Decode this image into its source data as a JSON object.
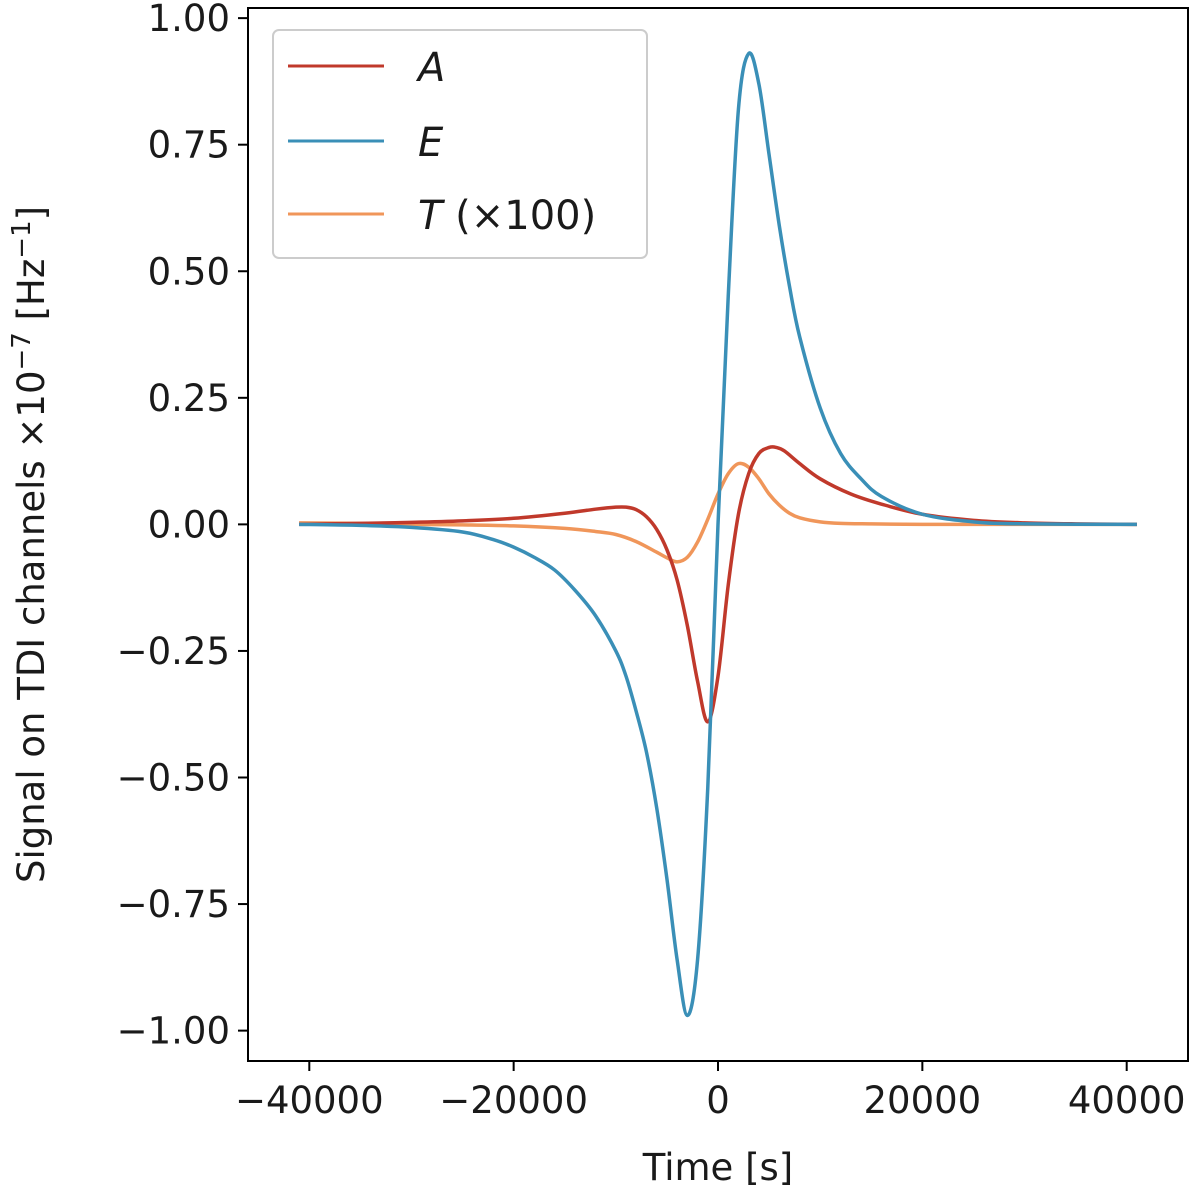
{
  "chart_data": {
    "type": "line",
    "xlabel": "Time [s]",
    "ylabel": "Signal on TDI channels ×10",
    "ylabel_exponent": "−7",
    "ylabel_unit_open": " [Hz",
    "ylabel_unit_exponent": "−1",
    "ylabel_unit_close": "]",
    "xlim": [
      -46000,
      46000
    ],
    "ylim": [
      -1.06,
      1.02
    ],
    "xticks": [
      -40000,
      -20000,
      0,
      20000,
      40000
    ],
    "xtick_labels": [
      "−40000",
      "−20000",
      "0",
      "20000",
      "40000"
    ],
    "yticks": [
      -1.0,
      -0.75,
      -0.5,
      -0.25,
      0.0,
      0.25,
      0.5,
      0.75,
      1.0
    ],
    "ytick_labels": [
      "−1.00",
      "−0.75",
      "−0.50",
      "−0.25",
      "0.00",
      "0.25",
      "0.50",
      "0.75",
      "1.00"
    ],
    "grid": false,
    "legend_position": "top-left",
    "series": [
      {
        "name": "A",
        "legend_symbol": "A",
        "legend_suffix": "",
        "color": "#c0392b",
        "x": [
          -41000,
          -35000,
          -30000,
          -25000,
          -20000,
          -15000,
          -12000,
          -10000,
          -9000,
          -8000,
          -7000,
          -6000,
          -5000,
          -4000,
          -3000,
          -2000,
          -1000,
          0,
          1000,
          2000,
          3000,
          4000,
          5000,
          5700,
          6500,
          8000,
          10000,
          13000,
          16000,
          20000,
          25000,
          30000,
          35000,
          41000
        ],
        "y": [
          0.0,
          0.002,
          0.004,
          0.007,
          0.012,
          0.022,
          0.03,
          0.034,
          0.034,
          0.029,
          0.015,
          -0.01,
          -0.05,
          -0.11,
          -0.2,
          -0.31,
          -0.39,
          -0.3,
          -0.12,
          0.02,
          0.1,
          0.14,
          0.152,
          0.152,
          0.145,
          0.12,
          0.09,
          0.06,
          0.04,
          0.02,
          0.008,
          0.003,
          0.001,
          0.0
        ]
      },
      {
        "name": "E",
        "legend_symbol": "E",
        "legend_suffix": "",
        "color": "#3a8fb7",
        "x": [
          -41000,
          -35000,
          -30000,
          -25000,
          -22000,
          -20000,
          -18000,
          -16000,
          -14000,
          -12000,
          -10000,
          -9000,
          -8000,
          -7000,
          -6000,
          -5000,
          -4000,
          -3000,
          -2000,
          -1000,
          0,
          1000,
          2000,
          3000,
          4000,
          5000,
          6000,
          7000,
          8000,
          10000,
          12000,
          14000,
          16000,
          20000,
          25000,
          30000,
          41000
        ],
        "y": [
          0.0,
          -0.002,
          -0.006,
          -0.015,
          -0.03,
          -0.045,
          -0.065,
          -0.09,
          -0.13,
          -0.18,
          -0.25,
          -0.3,
          -0.37,
          -0.45,
          -0.56,
          -0.7,
          -0.86,
          -0.97,
          -0.86,
          -0.52,
          0.0,
          0.45,
          0.82,
          0.93,
          0.87,
          0.73,
          0.59,
          0.47,
          0.37,
          0.23,
          0.14,
          0.09,
          0.055,
          0.02,
          0.005,
          0.001,
          0.0
        ]
      },
      {
        "name": "T",
        "legend_symbol": "T",
        "legend_suffix": " (×100)",
        "color": "#f0965a",
        "x": [
          -41000,
          -35000,
          -30000,
          -25000,
          -20000,
          -15000,
          -12000,
          -10000,
          -8000,
          -6000,
          -5000,
          -4000,
          -3000,
          -2000,
          -1000,
          0,
          1000,
          2000,
          3000,
          4000,
          5000,
          6000,
          7000,
          8000,
          10000,
          12000,
          15000,
          20000,
          25000,
          30000,
          41000
        ],
        "y": [
          0.003,
          0.002,
          0.0,
          -0.001,
          -0.003,
          -0.008,
          -0.014,
          -0.02,
          -0.034,
          -0.055,
          -0.066,
          -0.074,
          -0.065,
          -0.035,
          0.01,
          0.06,
          0.1,
          0.12,
          0.113,
          0.09,
          0.06,
          0.038,
          0.022,
          0.013,
          0.005,
          0.002,
          0.001,
          0.0,
          0.0,
          0.0,
          0.0
        ]
      }
    ]
  }
}
